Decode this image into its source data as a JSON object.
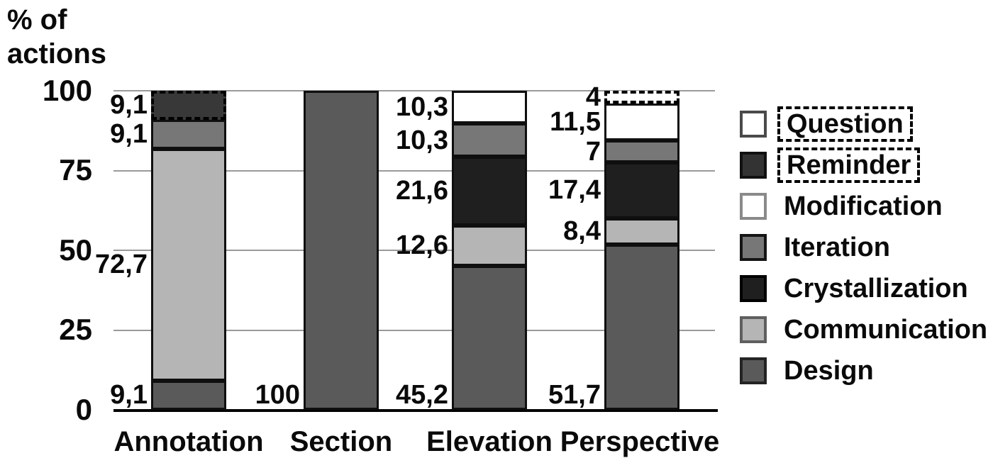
{
  "chart_data": {
    "type": "bar",
    "stacked": true,
    "ylabel_lines": [
      "% of",
      "actions"
    ],
    "ylim": [
      0,
      100
    ],
    "grid": true,
    "y_ticks": [
      100,
      75,
      50,
      25,
      0
    ],
    "y_ticks_display": [
      "100",
      "75",
      "50",
      "25",
      "0"
    ],
    "categories": [
      "Annotation",
      "Section",
      "Elevation",
      "Perspective"
    ],
    "series": [
      {
        "name": "Design",
        "color": "#5a5a5a",
        "dashed": false,
        "values": [
          9.1,
          100,
          45.2,
          51.7
        ],
        "labels": [
          "9,1",
          "100",
          "45,2",
          "51,7"
        ]
      },
      {
        "name": "Communication",
        "color": "#b5b5b5",
        "dashed": false,
        "values": [
          72.7,
          0,
          12.6,
          8.4
        ],
        "labels": [
          "72,7",
          "",
          "12,6",
          "8,4"
        ]
      },
      {
        "name": "Crystallization",
        "color": "#1f1f1f",
        "dashed": false,
        "values": [
          0,
          0,
          21.6,
          17.4
        ],
        "labels": [
          "",
          "",
          "21,6",
          "17,4"
        ]
      },
      {
        "name": "Iteration",
        "color": "#777777",
        "dashed": false,
        "values": [
          9.1,
          0,
          10.3,
          7
        ],
        "labels": [
          "9,1",
          "",
          "10,3",
          "7"
        ]
      },
      {
        "name": "Modification",
        "color": "#ffffff",
        "dashed": false,
        "values": [
          0,
          0,
          10.3,
          11.5
        ],
        "labels": [
          "",
          "",
          "10,3",
          "11,5"
        ]
      },
      {
        "name": "Reminder",
        "color": "#383838",
        "dashed": true,
        "values": [
          9.1,
          0,
          0,
          0
        ],
        "labels": [
          "9,1",
          "",
          "",
          ""
        ]
      },
      {
        "name": "Question",
        "color": "#ffffff",
        "dashed": true,
        "values": [
          0,
          0,
          0,
          4
        ],
        "labels": [
          "",
          "",
          "",
          "4"
        ]
      }
    ],
    "legend_position": "right",
    "legend": [
      {
        "label": "Question",
        "fill": "#ffffff",
        "border": "#4a4a4a",
        "dashed_label": true
      },
      {
        "label": "Reminder",
        "fill": "#333333",
        "border": "#111111",
        "dashed_label": true
      },
      {
        "label": "Modification",
        "fill": "#ffffff",
        "border": "#8a8a8a",
        "dashed_label": false
      },
      {
        "label": "Iteration",
        "fill": "#777777",
        "border": "#151515",
        "dashed_label": false
      },
      {
        "label": "Crystallization",
        "fill": "#1f1f1f",
        "border": "#000000",
        "dashed_label": false
      },
      {
        "label": "Communication",
        "fill": "#b5b5b5",
        "border": "#5f5f5f",
        "dashed_label": false
      },
      {
        "label": "Design",
        "fill": "#5a5a5a",
        "border": "#242424",
        "dashed_label": false
      }
    ],
    "colors": {
      "gridline": "#9a9a9a",
      "axis": "#000000",
      "text": "#0a0a0a"
    }
  }
}
